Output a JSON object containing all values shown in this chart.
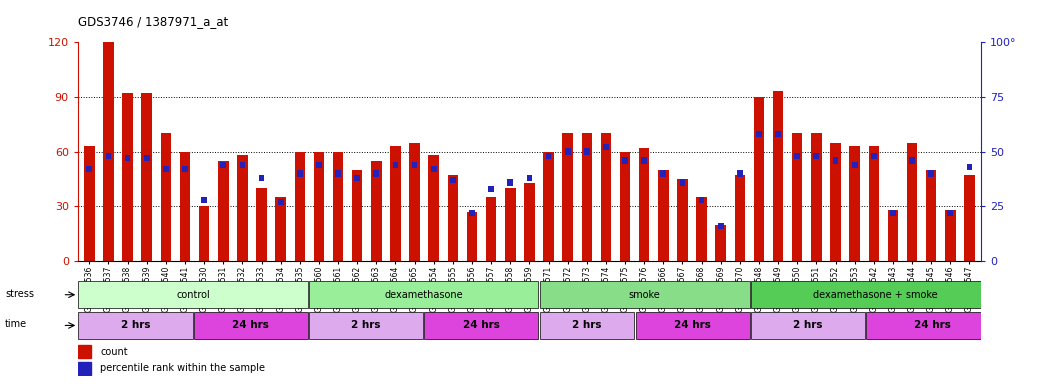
{
  "title": "GDS3746 / 1387971_a_at",
  "samples": [
    "GSM389536",
    "GSM389537",
    "GSM389538",
    "GSM389539",
    "GSM389540",
    "GSM389541",
    "GSM389530",
    "GSM389531",
    "GSM389532",
    "GSM389533",
    "GSM389534",
    "GSM389535",
    "GSM389560",
    "GSM389561",
    "GSM389562",
    "GSM389563",
    "GSM389564",
    "GSM389565",
    "GSM389554",
    "GSM389555",
    "GSM389556",
    "GSM389557",
    "GSM389558",
    "GSM389559",
    "GSM389571",
    "GSM389572",
    "GSM389573",
    "GSM389574",
    "GSM389575",
    "GSM389576",
    "GSM389566",
    "GSM389567",
    "GSM389568",
    "GSM389569",
    "GSM389570",
    "GSM389548",
    "GSM389549",
    "GSM389550",
    "GSM389551",
    "GSM389552",
    "GSM389553",
    "GSM389542",
    "GSM389543",
    "GSM389544",
    "GSM389545",
    "GSM389546",
    "GSM389547"
  ],
  "count": [
    63,
    120,
    92,
    92,
    70,
    60,
    30,
    55,
    58,
    40,
    35,
    60,
    60,
    60,
    50,
    55,
    63,
    65,
    58,
    47,
    27,
    35,
    40,
    43,
    60,
    70,
    70,
    70,
    60,
    62,
    50,
    45,
    35,
    20,
    47,
    90,
    93,
    70,
    70,
    65,
    63,
    63,
    28,
    65,
    50,
    28,
    47
  ],
  "percentile": [
    42,
    48,
    47,
    47,
    42,
    42,
    28,
    44,
    44,
    38,
    27,
    40,
    44,
    40,
    38,
    40,
    44,
    44,
    42,
    37,
    22,
    33,
    36,
    38,
    48,
    50,
    50,
    52,
    46,
    46,
    40,
    36,
    28,
    16,
    40,
    58,
    58,
    48,
    48,
    46,
    44,
    48,
    22,
    46,
    40,
    22,
    43
  ],
  "bar_color": "#cc1100",
  "percentile_color": "#2222bb",
  "ylim_left": [
    0,
    120
  ],
  "ylim_right": [
    0,
    100
  ],
  "yticks_left": [
    0,
    30,
    60,
    90,
    120
  ],
  "yticks_right": [
    0,
    25,
    50,
    75,
    100
  ],
  "grid_values": [
    30,
    60,
    90
  ],
  "stress_groups": [
    {
      "label": "control",
      "start": 0,
      "end": 11,
      "color": "#ccffcc"
    },
    {
      "label": "dexamethasone",
      "start": 12,
      "end": 23,
      "color": "#99ee99"
    },
    {
      "label": "smoke",
      "start": 24,
      "end": 34,
      "color": "#88dd88"
    },
    {
      "label": "dexamethasone + smoke",
      "start": 35,
      "end": 47,
      "color": "#55cc55"
    }
  ],
  "time_groups": [
    {
      "label": "2 hrs",
      "start": 0,
      "end": 5,
      "color": "#ddaaee"
    },
    {
      "label": "24 hrs",
      "start": 6,
      "end": 11,
      "color": "#dd44dd"
    },
    {
      "label": "2 hrs",
      "start": 12,
      "end": 17,
      "color": "#ddaaee"
    },
    {
      "label": "24 hrs",
      "start": 18,
      "end": 23,
      "color": "#dd44dd"
    },
    {
      "label": "2 hrs",
      "start": 24,
      "end": 28,
      "color": "#ddaaee"
    },
    {
      "label": "24 hrs",
      "start": 29,
      "end": 34,
      "color": "#dd44dd"
    },
    {
      "label": "2 hrs",
      "start": 35,
      "end": 40,
      "color": "#ddaaee"
    },
    {
      "label": "24 hrs",
      "start": 41,
      "end": 47,
      "color": "#dd44dd"
    }
  ],
  "bg_color": "#ffffff",
  "axis_color_left": "#cc1100",
  "axis_color_right": "#2222bb",
  "bar_width": 0.55
}
